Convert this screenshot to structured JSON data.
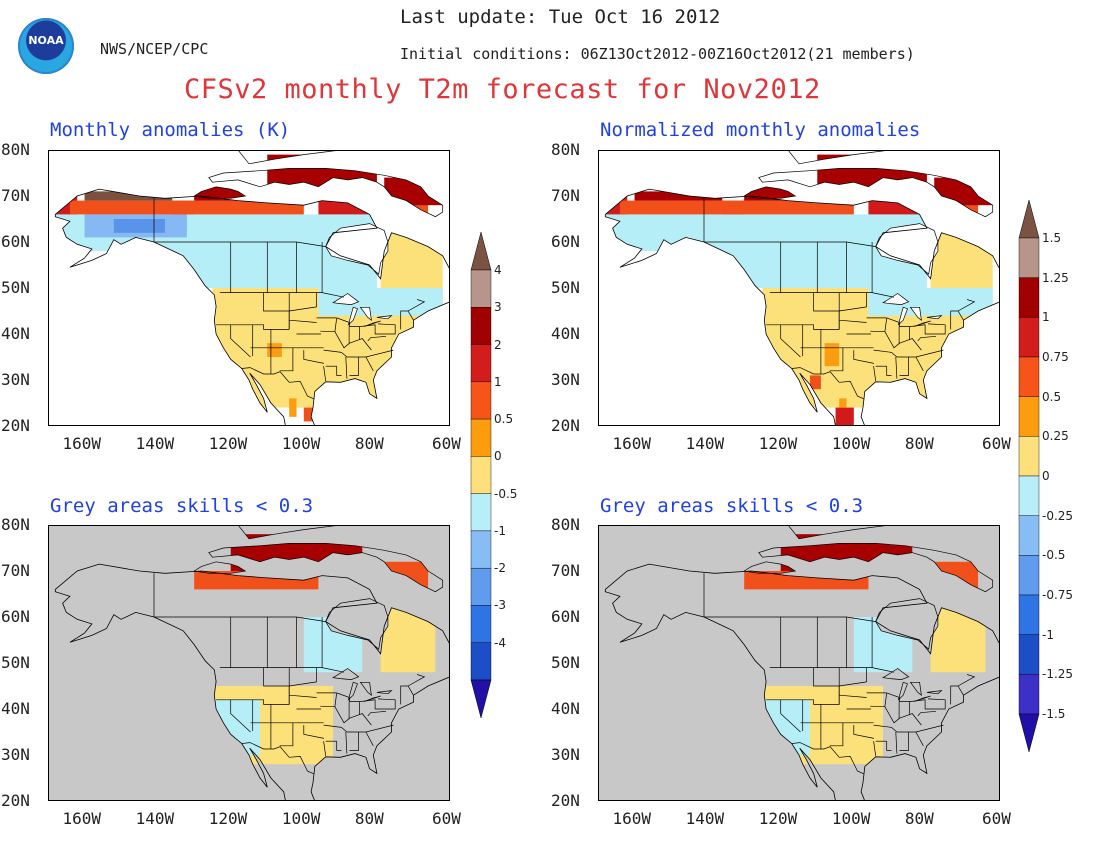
{
  "header": {
    "logo_text": "NOAA",
    "agency": "NWS/NCEP/CPC",
    "last_update": "Last update: Tue Oct 16 2012",
    "initial_conditions": "Initial conditions: 06Z13Oct2012-00Z16Oct2012(21 members)",
    "title": "CFSv2 monthly T2m forecast for Nov2012"
  },
  "panels": [
    {
      "title": "Monthly anomalies (K)",
      "grey": false,
      "colorbar": "left"
    },
    {
      "title": "Normalized monthly anomalies",
      "grey": false,
      "colorbar": "right"
    },
    {
      "title": "Grey areas skills < 0.3",
      "grey": true,
      "colorbar": "left"
    },
    {
      "title": "Grey areas skills < 0.3",
      "grey": true,
      "colorbar": "right"
    }
  ],
  "axes": {
    "lat_labels": [
      "80N",
      "70N",
      "60N",
      "50N",
      "40N",
      "30N",
      "20N"
    ],
    "lon_labels": [
      "160W",
      "140W",
      "120W",
      "100W",
      "80W",
      "60W"
    ]
  },
  "colorbar_left": {
    "labels": [
      "4",
      "3",
      "2",
      "1",
      "0.5",
      "0",
      "-0.5",
      "-1",
      "-2",
      "-3",
      "-4"
    ]
  },
  "colorbar_right": {
    "labels": [
      "1.5",
      "1.25",
      "1",
      "0.75",
      "0.5",
      "0.25",
      "0",
      "-0.25",
      "-0.5",
      "-0.75",
      "-1",
      "-1.25",
      "-1.5"
    ]
  },
  "colors": {
    "title_red": "#e0363a",
    "panel_title_blue": "#2040e8",
    "grey_mask": "#c8c8c8",
    "pale_yellow": "#fce07a",
    "light_blue": "#b6eef8",
    "mid_blue": "#86b8f4",
    "blue": "#5a94ea",
    "orange": "#fc9c10",
    "red_orange": "#f2501a",
    "red": "#d21a1a",
    "dark_red": "#a80000",
    "pink_brown": "#c09890",
    "brown": "#7a5040",
    "cbar_scale": [
      "#7b5343",
      "#b8958a",
      "#a00000",
      "#d31c1c",
      "#f65418",
      "#fd9d0d",
      "#fde07b",
      "#b7eef8",
      "#86bdf5",
      "#5f9ced",
      "#2f74e4",
      "#1c4ec8",
      "#3c30c8",
      "#2010a8"
    ]
  }
}
